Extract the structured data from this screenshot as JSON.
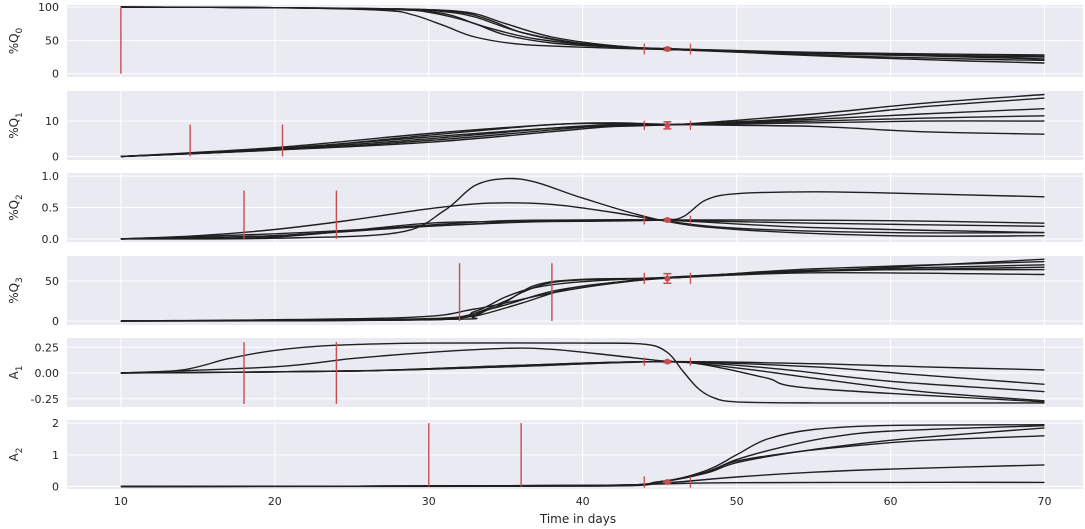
{
  "figure": {
    "xlabel": "Time in days",
    "colors": {
      "panel_bg": "#eaeaf2",
      "grid": "#ffffff",
      "curve": "#1f1f1f",
      "marker": "#c44e52",
      "text": "#262626"
    }
  },
  "chart_data": [
    {
      "type": "line",
      "ylabel": "%Q",
      "ylabel_sub": "0",
      "xlim": [
        6.5,
        72.5
      ],
      "ylim": [
        -5,
        103
      ],
      "xticks": [
        "10",
        "20",
        "30",
        "40",
        "50",
        "60",
        "70"
      ],
      "yticks": [
        "0",
        "50",
        "100"
      ],
      "grid": true,
      "series": [
        {
          "x": [
            10,
            20,
            28,
            31,
            33,
            35,
            38,
            42,
            46,
            55,
            65,
            70
          ],
          "y": [
            100,
            99,
            97,
            95,
            90,
            75,
            55,
            42,
            36,
            30,
            26,
            25
          ]
        },
        {
          "x": [
            10,
            20,
            28,
            32,
            34,
            36,
            39,
            43,
            46,
            55,
            65,
            70
          ],
          "y": [
            100,
            99,
            97,
            92,
            80,
            62,
            48,
            40,
            37,
            32,
            29,
            28
          ]
        },
        {
          "x": [
            10,
            20,
            28,
            30,
            32,
            34,
            37,
            42,
            46,
            55,
            65,
            70
          ],
          "y": [
            100,
            99,
            96,
            92,
            82,
            68,
            52,
            40,
            36,
            28,
            22,
            20
          ]
        },
        {
          "x": [
            10,
            20,
            28,
            31,
            33,
            35,
            38,
            42,
            46,
            55,
            65,
            70
          ],
          "y": [
            100,
            99,
            96,
            90,
            75,
            58,
            46,
            40,
            37,
            27,
            19,
            16
          ]
        },
        {
          "x": [
            10,
            20,
            27,
            29,
            31,
            33,
            36,
            41,
            46,
            55,
            65,
            70
          ],
          "y": [
            100,
            99,
            95,
            88,
            72,
            55,
            44,
            39,
            36,
            31,
            27,
            26
          ]
        },
        {
          "x": [
            10,
            20,
            28,
            31,
            33,
            36,
            40,
            43,
            46,
            55,
            65,
            70
          ],
          "y": [
            100,
            99,
            97,
            93,
            85,
            62,
            45,
            39,
            37,
            31,
            25,
            22
          ]
        }
      ],
      "marker_lines": [
        {
          "x": 10,
          "y": [
            0,
            100
          ]
        }
      ],
      "observation": {
        "x": 45.5,
        "y": 37,
        "err": 2,
        "window": [
          44,
          47
        ],
        "window_half_height": 8
      }
    },
    {
      "type": "line",
      "ylabel": "%Q",
      "ylabel_sub": "1",
      "xlim": [
        6.5,
        72.5
      ],
      "ylim": [
        -1,
        18.5
      ],
      "xticks": [
        "10",
        "20",
        "30",
        "40",
        "50",
        "60",
        "70"
      ],
      "yticks": [
        "0",
        "10"
      ],
      "grid": true,
      "series": [
        {
          "x": [
            10,
            20,
            30,
            38,
            42,
            46,
            55,
            62,
            70
          ],
          "y": [
            0,
            2,
            5,
            8,
            9,
            9,
            12,
            15,
            17.5
          ]
        },
        {
          "x": [
            10,
            20,
            30,
            38,
            42,
            46,
            55,
            62,
            70
          ],
          "y": [
            0,
            2.2,
            5.5,
            8,
            8.5,
            9,
            11,
            14,
            16.5
          ]
        },
        {
          "x": [
            10,
            20,
            30,
            38,
            42,
            46,
            55,
            62,
            70
          ],
          "y": [
            0,
            1.8,
            4,
            7,
            8.5,
            9,
            10.5,
            12,
            13.5
          ]
        },
        {
          "x": [
            10,
            20,
            30,
            38,
            42,
            46,
            55,
            62,
            70
          ],
          "y": [
            0,
            1.8,
            4.5,
            7.5,
            8.8,
            9,
            10,
            10.8,
            11.5
          ]
        },
        {
          "x": [
            10,
            20,
            30,
            38,
            42,
            46,
            55,
            62,
            70
          ],
          "y": [
            0,
            2,
            6,
            9,
            9.3,
            9,
            9.5,
            10,
            10
          ]
        },
        {
          "x": [
            10,
            20,
            30,
            38,
            42,
            46,
            55,
            62,
            70
          ],
          "y": [
            0,
            2.5,
            6.5,
            9,
            9.5,
            9,
            8.5,
            7,
            6.3
          ]
        }
      ],
      "marker_lines": [
        {
          "x": 14.5,
          "y": [
            0,
            9
          ]
        },
        {
          "x": 20.5,
          "y": [
            0,
            9
          ]
        }
      ],
      "observation": {
        "x": 45.5,
        "y": 8.8,
        "err": 1,
        "window": [
          44,
          47
        ],
        "window_half_height": 1.3
      }
    },
    {
      "type": "line",
      "ylabel": "%Q",
      "ylabel_sub": "2",
      "xlim": [
        6.5,
        72.5
      ],
      "ylim": [
        -0.05,
        1.05
      ],
      "xticks": [
        "10",
        "20",
        "30",
        "40",
        "50",
        "60",
        "70"
      ],
      "yticks": [
        "0.0",
        "0.5",
        "1.0"
      ],
      "grid": true,
      "series": [
        {
          "x": [
            10,
            20,
            28,
            31,
            33,
            35,
            37,
            40,
            45,
            50,
            60,
            70
          ],
          "y": [
            0,
            0.01,
            0.1,
            0.45,
            0.85,
            0.96,
            0.9,
            0.65,
            0.3,
            0.15,
            0.05,
            0.05
          ]
        },
        {
          "x": [
            10,
            15,
            20,
            25,
            30,
            34,
            38,
            42,
            45,
            50,
            60,
            70
          ],
          "y": [
            0,
            0.05,
            0.15,
            0.3,
            0.48,
            0.57,
            0.55,
            0.42,
            0.3,
            0.17,
            0.1,
            0.1
          ]
        },
        {
          "x": [
            10,
            20,
            30,
            35,
            40,
            45,
            46.5,
            48,
            50,
            55,
            60,
            70
          ],
          "y": [
            0,
            0.03,
            0.25,
            0.27,
            0.28,
            0.3,
            0.35,
            0.62,
            0.72,
            0.75,
            0.73,
            0.67
          ]
        },
        {
          "x": [
            10,
            20,
            30,
            35,
            40,
            45,
            50,
            60,
            70
          ],
          "y": [
            0,
            0.05,
            0.22,
            0.29,
            0.3,
            0.3,
            0.3,
            0.29,
            0.25
          ]
        },
        {
          "x": [
            10,
            20,
            28,
            33,
            38,
            45,
            55,
            70
          ],
          "y": [
            0,
            0.08,
            0.18,
            0.24,
            0.29,
            0.3,
            0.25,
            0.2
          ]
        },
        {
          "x": [
            10,
            20,
            30,
            38,
            45,
            55,
            70
          ],
          "y": [
            0,
            0.05,
            0.2,
            0.28,
            0.3,
            0.18,
            0.1
          ]
        }
      ],
      "marker_lines": [
        {
          "x": 18,
          "y": [
            0,
            0.77
          ]
        },
        {
          "x": 24,
          "y": [
            0,
            0.77
          ]
        }
      ],
      "observation": {
        "x": 45.5,
        "y": 0.3,
        "err": 0.02,
        "window": [
          44,
          47
        ],
        "window_half_height": 0.07
      }
    },
    {
      "type": "line",
      "ylabel": "%Q",
      "ylabel_sub": "3",
      "xlim": [
        6.5,
        72.5
      ],
      "ylim": [
        -5,
        81
      ],
      "xticks": [
        "10",
        "20",
        "30",
        "40",
        "50",
        "60",
        "70"
      ],
      "yticks": [
        "0",
        "50"
      ],
      "grid": true,
      "series": [
        {
          "x": [
            10,
            28,
            32,
            35,
            37,
            40,
            46,
            55,
            70
          ],
          "y": [
            0,
            1,
            5,
            25,
            45,
            52,
            54,
            62,
            77
          ]
        },
        {
          "x": [
            10,
            30,
            34,
            36,
            38,
            41,
            46,
            55,
            70
          ],
          "y": [
            0,
            2,
            15,
            35,
            48,
            52,
            54,
            65,
            74
          ]
        },
        {
          "x": [
            10,
            30,
            33,
            35,
            37,
            40,
            46,
            55,
            70
          ],
          "y": [
            0,
            2,
            12,
            30,
            42,
            49,
            55,
            63,
            70
          ]
        },
        {
          "x": [
            10,
            31,
            33,
            36,
            39,
            42,
            46,
            55,
            70
          ],
          "y": [
            0,
            2,
            6,
            22,
            40,
            48,
            55,
            62,
            67
          ]
        },
        {
          "x": [
            10,
            28,
            33,
            38,
            42,
            46,
            55,
            70
          ],
          "y": [
            0,
            4,
            15,
            35,
            47,
            54,
            63,
            64
          ]
        },
        {
          "x": [
            10,
            30,
            34,
            38,
            42,
            46,
            55,
            70
          ],
          "y": [
            0,
            3,
            15,
            37,
            48,
            54,
            60,
            58
          ]
        }
      ],
      "marker_lines": [
        {
          "x": 32,
          "y": [
            0,
            72
          ]
        },
        {
          "x": 38,
          "y": [
            0,
            72
          ]
        }
      ],
      "observation": {
        "x": 45.5,
        "y": 53,
        "err": 6,
        "window": [
          44,
          47
        ],
        "window_half_height": 7
      }
    },
    {
      "type": "line",
      "ylabel": "A",
      "ylabel_sub": "1",
      "xlim": [
        6.5,
        72.5
      ],
      "ylim": [
        -0.33,
        0.34
      ],
      "xticks": [
        "10",
        "20",
        "30",
        "40",
        "50",
        "60",
        "70"
      ],
      "yticks": [
        "0.25",
        "0.00",
        "-0.25"
      ],
      "grid": true,
      "series": [
        {
          "x": [
            10,
            14,
            17,
            20,
            24,
            30,
            40,
            44,
            45.5,
            46.5,
            47.5,
            48.5,
            50,
            55,
            70
          ],
          "y": [
            0,
            0.03,
            0.14,
            0.22,
            0.27,
            0.29,
            0.29,
            0.28,
            0.2,
            0.02,
            -0.15,
            -0.24,
            -0.28,
            -0.29,
            -0.29
          ]
        },
        {
          "x": [
            10,
            20,
            25,
            30,
            35,
            38,
            42,
            45,
            47,
            49,
            52,
            55,
            70
          ],
          "y": [
            0,
            0.06,
            0.14,
            0.2,
            0.24,
            0.23,
            0.17,
            0.12,
            0.1,
            0.05,
            -0.05,
            -0.15,
            -0.28
          ]
        },
        {
          "x": [
            10,
            25,
            35,
            45,
            55,
            62,
            70
          ],
          "y": [
            0,
            0.02,
            0.06,
            0.11,
            0.09,
            0.06,
            0.03
          ]
        },
        {
          "x": [
            10,
            25,
            35,
            45,
            55,
            62,
            70
          ],
          "y": [
            0,
            0.02,
            0.07,
            0.11,
            0.06,
            -0.02,
            -0.11
          ]
        },
        {
          "x": [
            10,
            25,
            35,
            45,
            52,
            60,
            70
          ],
          "y": [
            0,
            0.02,
            0.07,
            0.11,
            0.05,
            -0.08,
            -0.18
          ]
        },
        {
          "x": [
            10,
            25,
            35,
            45,
            50,
            55,
            62,
            70
          ],
          "y": [
            0,
            0.02,
            0.06,
            0.11,
            0.05,
            -0.05,
            -0.18,
            -0.27
          ]
        }
      ],
      "marker_lines": [
        {
          "x": 18,
          "y": [
            -0.3,
            0.3
          ]
        },
        {
          "x": 24,
          "y": [
            -0.3,
            0.3
          ]
        }
      ],
      "observation": {
        "x": 45.5,
        "y": 0.11,
        "err": 0.01,
        "window": [
          44,
          47
        ],
        "window_half_height": 0.04
      }
    },
    {
      "type": "line",
      "ylabel": "A",
      "ylabel_sub": "2",
      "xlim": [
        6.5,
        72.5
      ],
      "ylim": [
        -0.08,
        2.1
      ],
      "xticks": [
        "10",
        "20",
        "30",
        "40",
        "50",
        "60",
        "70"
      ],
      "yticks": [
        "0",
        "1",
        "2"
      ],
      "grid": true,
      "series": [
        {
          "x": [
            10,
            40,
            45,
            48,
            50,
            52,
            55,
            60,
            70
          ],
          "y": [
            0,
            0.03,
            0.15,
            0.5,
            1.0,
            1.5,
            1.8,
            1.93,
            1.95
          ]
        },
        {
          "x": [
            10,
            40,
            45,
            48,
            50,
            53,
            56,
            60,
            70
          ],
          "y": [
            0,
            0.03,
            0.15,
            0.45,
            0.85,
            1.25,
            1.55,
            1.75,
            1.92
          ]
        },
        {
          "x": [
            10,
            40,
            45,
            48,
            50,
            54,
            58,
            62,
            70
          ],
          "y": [
            0,
            0.03,
            0.15,
            0.42,
            0.75,
            1.1,
            1.35,
            1.55,
            1.85
          ]
        },
        {
          "x": [
            10,
            40,
            45,
            48,
            50,
            54,
            58,
            62,
            70
          ],
          "y": [
            0,
            0.03,
            0.15,
            0.45,
            0.8,
            1.1,
            1.3,
            1.45,
            1.6
          ]
        },
        {
          "x": [
            10,
            40,
            45,
            50,
            55,
            60,
            70
          ],
          "y": [
            0,
            0.02,
            0.1,
            0.3,
            0.45,
            0.55,
            0.68
          ]
        },
        {
          "x": [
            10,
            40,
            45,
            50,
            60,
            70
          ],
          "y": [
            0,
            0.01,
            0.08,
            0.12,
            0.13,
            0.13
          ]
        }
      ],
      "marker_lines": [
        {
          "x": 30,
          "y": [
            0,
            2
          ]
        },
        {
          "x": 36,
          "y": [
            0,
            2
          ]
        }
      ],
      "observation": {
        "x": 45.5,
        "y": 0.14,
        "err": 0.02,
        "window": [
          44,
          47
        ],
        "window_half_height": 0.18
      }
    }
  ]
}
